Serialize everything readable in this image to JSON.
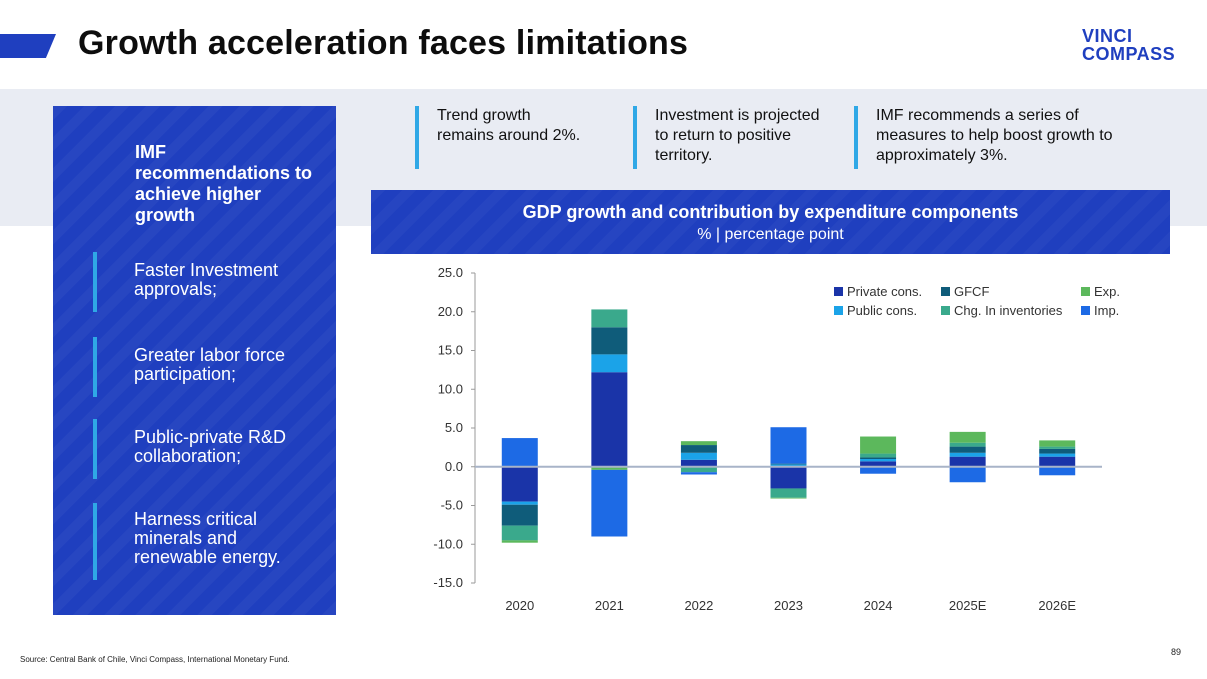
{
  "header": {
    "title": "Growth acceleration faces limitations",
    "logo_line1": "VINCI",
    "logo_line2": "COMPASS"
  },
  "left_panel": {
    "heading": "IMF recommendations to achieve higher growth",
    "items": [
      {
        "label": "Faster Investment approvals;"
      },
      {
        "label": "Greater labor force participation;"
      },
      {
        "label": "Public-private R&D collaboration;"
      },
      {
        "label": "Harness critical minerals and renewable energy."
      }
    ]
  },
  "callouts": [
    {
      "text": "Trend growth remains around 2%."
    },
    {
      "text": "Investment is projected to return to positive territory."
    },
    {
      "text": "IMF recommends a series of measures to help boost growth to approximately 3%."
    }
  ],
  "chart_header": {
    "title": "GDP growth and contribution by expenditure components",
    "subtitle": "% | percentage point"
  },
  "chart_data": {
    "type": "bar",
    "stacked": true,
    "title": "GDP growth and contribution by expenditure components",
    "subtitle": "% | percentage point",
    "categories": [
      "2020",
      "2021",
      "2022",
      "2023",
      "2024",
      "2025E",
      "2026E"
    ],
    "ylim": [
      -15,
      25
    ],
    "yticks": [
      "25.0",
      "20.0",
      "15.0",
      "10.0",
      "5.0",
      "0.0",
      "-5.0",
      "-10.0",
      "-15.0"
    ],
    "ytick_values": [
      25,
      20,
      15,
      10,
      5,
      0,
      -5,
      -10,
      -15
    ],
    "legend_position": "top-right",
    "series": [
      {
        "name": "Private cons.",
        "color": "#1a34a8",
        "values": [
          -4.5,
          12.2,
          0.9,
          -2.8,
          0.7,
          1.3,
          1.3
        ]
      },
      {
        "name": "Public cons.",
        "color": "#1ba3e8",
        "values": [
          -0.4,
          2.3,
          0.9,
          0.3,
          0.3,
          0.5,
          0.4
        ]
      },
      {
        "name": "GFCF",
        "color": "#0f5c7a",
        "values": [
          -2.7,
          3.5,
          1.0,
          0.1,
          0.2,
          0.8,
          0.6
        ]
      },
      {
        "name": "Chg. In inventories",
        "color": "#3aa98c",
        "values": [
          -1.9,
          2.3,
          -0.7,
          -1.2,
          0.5,
          0.5,
          0.3
        ]
      },
      {
        "name": "Exp.",
        "color": "#5cb85c",
        "values": [
          -0.3,
          -0.4,
          0.5,
          -0.1,
          2.2,
          1.4,
          0.8
        ]
      },
      {
        "name": "Imp.",
        "color": "#1d6ae5",
        "values": [
          3.7,
          -8.6,
          -0.3,
          4.7,
          -0.9,
          -2.0,
          -1.1
        ]
      }
    ]
  },
  "footer": {
    "source": "Source: Central Bank of Chile, Vinci Compass, International Monetary Fund.",
    "page_number": "89"
  }
}
